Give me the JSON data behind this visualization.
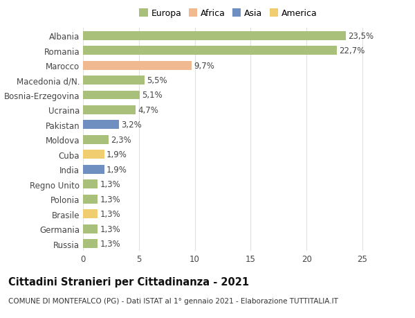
{
  "countries": [
    "Albania",
    "Romania",
    "Marocco",
    "Macedonia d/N.",
    "Bosnia-Erzegovina",
    "Ucraina",
    "Pakistan",
    "Moldova",
    "Cuba",
    "India",
    "Regno Unito",
    "Polonia",
    "Brasile",
    "Germania",
    "Russia"
  ],
  "values": [
    23.5,
    22.7,
    9.7,
    5.5,
    5.1,
    4.7,
    3.2,
    2.3,
    1.9,
    1.9,
    1.3,
    1.3,
    1.3,
    1.3,
    1.3
  ],
  "labels": [
    "23,5%",
    "22,7%",
    "9,7%",
    "5,5%",
    "5,1%",
    "4,7%",
    "3,2%",
    "2,3%",
    "1,9%",
    "1,9%",
    "1,3%",
    "1,3%",
    "1,3%",
    "1,3%",
    "1,3%"
  ],
  "continents": [
    "Europa",
    "Europa",
    "Africa",
    "Europa",
    "Europa",
    "Europa",
    "Asia",
    "Europa",
    "America",
    "Asia",
    "Europa",
    "Europa",
    "America",
    "Europa",
    "Europa"
  ],
  "continent_colors": {
    "Europa": "#a8c07a",
    "Africa": "#f0b990",
    "Asia": "#6e8fbf",
    "America": "#f0ce70"
  },
  "legend_items": [
    "Europa",
    "Africa",
    "Asia",
    "America"
  ],
  "legend_colors": [
    "#a8c07a",
    "#f0b990",
    "#6e8fbf",
    "#f0ce70"
  ],
  "xlim": [
    0,
    26
  ],
  "xticks": [
    0,
    5,
    10,
    15,
    20,
    25
  ],
  "title": "Cittadini Stranieri per Cittadinanza - 2021",
  "subtitle": "COMUNE DI MONTEFALCO (PG) - Dati ISTAT al 1° gennaio 2021 - Elaborazione TUTTITALIA.IT",
  "bar_height": 0.6,
  "background_color": "#ffffff",
  "grid_color": "#e0e0e0",
  "label_fontsize": 8.5,
  "tick_fontsize": 8.5,
  "title_fontsize": 10.5
}
